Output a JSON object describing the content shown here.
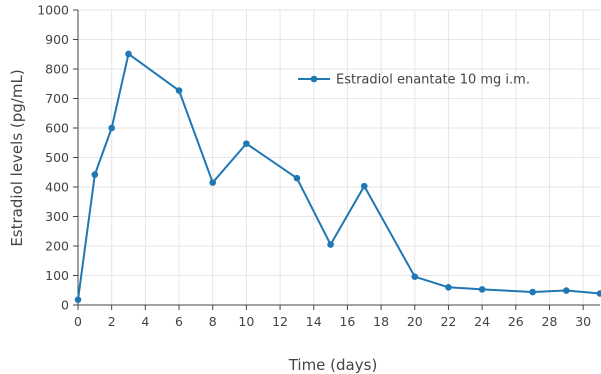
{
  "chart_data": {
    "type": "line",
    "xlabel": "Time (days)",
    "ylabel": "Estradiol levels (pg/mL)",
    "xlim": [
      0,
      31
    ],
    "ylim": [
      0,
      1000
    ],
    "x_ticks": [
      0,
      2,
      4,
      6,
      8,
      10,
      12,
      14,
      16,
      18,
      20,
      22,
      24,
      26,
      28,
      30
    ],
    "y_ticks": [
      0,
      100,
      200,
      300,
      400,
      500,
      600,
      700,
      800,
      900,
      1000
    ],
    "grid": true,
    "legend_position": "top-right",
    "series": [
      {
        "name": "Estradiol enantate 10 mg i.m.",
        "color": "#1f77b4",
        "x": [
          0,
          1,
          2,
          3,
          6,
          8,
          10,
          13,
          15,
          17,
          20,
          22,
          24,
          27,
          29,
          31
        ],
        "y": [
          18,
          442,
          600,
          851,
          727,
          415,
          547,
          430,
          205,
          403,
          96,
          60,
          53,
          44,
          49,
          39
        ]
      }
    ]
  }
}
